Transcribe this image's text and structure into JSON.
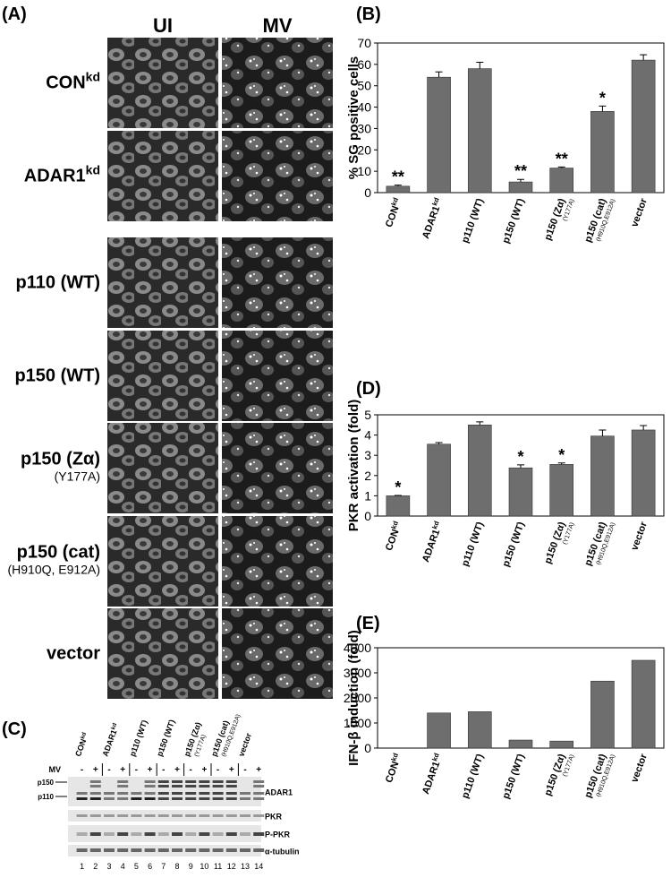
{
  "figure_labels": [
    "(A)",
    "(B)",
    "(C)",
    "(D)",
    "(E)"
  ],
  "panel_a": {
    "columns": [
      "UI",
      "MV"
    ],
    "rows": [
      {
        "label": "CONkd"
      },
      {
        "label": "ADAR1kd"
      },
      {
        "label": "p110 (WT)"
      },
      {
        "label": "p150 (WT)"
      },
      {
        "label": "p150 (Zα)",
        "note": "(Y177A)"
      },
      {
        "label": "p150 (cat)",
        "note": "(H910Q, E912A)"
      },
      {
        "label": "vector"
      }
    ]
  },
  "panel_c": {
    "groups": [
      "CONkd",
      "ADAR1kd",
      "p110 (WT)",
      "p150 (WT)",
      "p150 (Zα)",
      "p150 (cat)",
      "vector"
    ],
    "group_notes": [
      null,
      null,
      null,
      null,
      "(Y177A)",
      "(H910Q,E912A)",
      null
    ],
    "treatment_label": "MV",
    "treatment": [
      "-",
      "+",
      "-",
      "+",
      "-",
      "+",
      "-",
      "+",
      "-",
      "+",
      "-",
      "+",
      "-",
      "+"
    ],
    "markers": [
      "p150",
      "p110"
    ],
    "bands": [
      "ADAR1",
      "PKR",
      "P-PKR",
      "α-tubulin"
    ],
    "lanes": [
      1,
      2,
      3,
      4,
      5,
      6,
      7,
      8,
      9,
      10,
      11,
      12,
      13,
      14
    ]
  },
  "chart_data": [
    {
      "type": "bar",
      "ylabel": "% SG positive cells",
      "categories": [
        "CONkd",
        "ADAR1kd",
        "p110 (WT)",
        "p150 (WT)",
        "p150 (Zα)",
        "p150 (cat)",
        "vector"
      ],
      "category_notes": [
        null,
        null,
        null,
        null,
        "(Y177A)",
        "(H910Q,E912A)",
        null
      ],
      "values": [
        3,
        54,
        58,
        5,
        11.5,
        38,
        62
      ],
      "errors": [
        0.5,
        2.5,
        3,
        1.2,
        0.5,
        2.5,
        2.5
      ],
      "annotations": [
        "**",
        null,
        null,
        "**",
        "**",
        "*",
        null
      ],
      "color": "#6e6e6e",
      "ylim": [
        0,
        70
      ],
      "yticks": [
        0,
        10,
        20,
        30,
        40,
        50,
        60,
        70
      ]
    },
    {
      "type": "bar",
      "ylabel": "PKR activation (fold)",
      "categories": [
        "CONkd",
        "ADAR1kd",
        "p110 (WT)",
        "p150 (WT)",
        "p150 (Zα)",
        "p150 (cat)",
        "vector"
      ],
      "category_notes": [
        null,
        null,
        null,
        null,
        "(Y177A)",
        "(H910Q,E912A)",
        null
      ],
      "values": [
        1,
        3.55,
        4.5,
        2.38,
        2.55,
        3.95,
        4.25
      ],
      "errors": [
        0.02,
        0.08,
        0.15,
        0.15,
        0.07,
        0.3,
        0.22
      ],
      "annotations": [
        "*",
        null,
        null,
        "*",
        "*",
        null,
        null
      ],
      "color": "#6e6e6e",
      "ylim": [
        0,
        5
      ],
      "yticks": [
        0,
        1,
        2,
        3,
        4,
        5
      ]
    },
    {
      "type": "bar",
      "ylabel": "IFN-β induction (fold)",
      "categories": [
        "CONkd",
        "ADAR1kd",
        "p110 (WT)",
        "p150 (WT)",
        "p150 (Zα)",
        "p150 (cat)",
        "vector"
      ],
      "category_notes": [
        null,
        null,
        null,
        null,
        "(Y177A)",
        "(H910Q,E912A)",
        null
      ],
      "values": [
        0,
        1400,
        1450,
        320,
        280,
        2670,
        3500
      ],
      "color": "#6e6e6e",
      "ylim": [
        0,
        4000
      ],
      "yticks": [
        0,
        1000,
        2000,
        3000,
        4000
      ]
    }
  ]
}
